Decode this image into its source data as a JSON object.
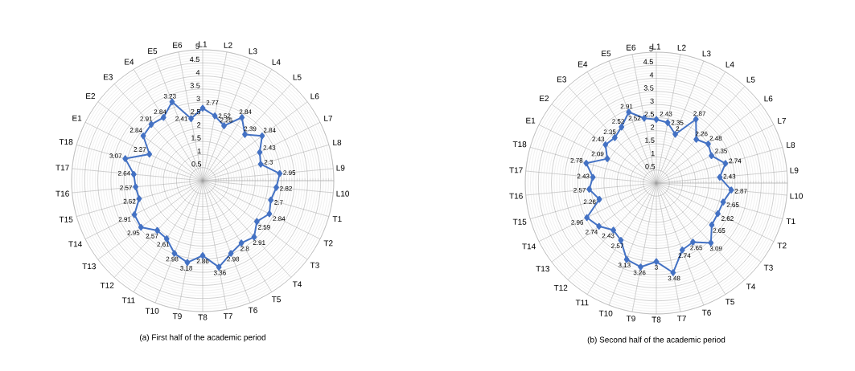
{
  "chart_data": [
    {
      "type": "radar",
      "title": "(a) First half of the academic period",
      "categories": [
        "L1",
        "L2",
        "L3",
        "L4",
        "L5",
        "L6",
        "L7",
        "L8",
        "L9",
        "L10",
        "T1",
        "T2",
        "T3",
        "T4",
        "T5",
        "T6",
        "T7",
        "T8",
        "T9",
        "T10",
        "T11",
        "T12",
        "T13",
        "T14",
        "T15",
        "T16",
        "T17",
        "T18",
        "E1",
        "E2",
        "E3",
        "E4",
        "E5",
        "E6"
      ],
      "series": [
        {
          "color": "#4472c4",
          "values": [
            2.77,
            2.52,
            2.25,
            2.84,
            2.39,
            2.84,
            2.43,
            2.3,
            2.95,
            2.82,
            2.7,
            2.84,
            2.59,
            2.91,
            2.8,
            2.98,
            3.36,
            2.86,
            3.18,
            2.98,
            2.61,
            2.57,
            2.95,
            2.91,
            2.52,
            2.57,
            2.64,
            3.07,
            2.27,
            2.84,
            2.91,
            2.84,
            3.23,
            2.41
          ]
        }
      ],
      "ylim": [
        0,
        5
      ],
      "yticks": [
        0.5,
        1,
        1.5,
        2,
        2.5,
        3,
        3.5,
        4,
        4.5,
        5
      ],
      "grid": true,
      "marker": "diamond",
      "data_labels": true
    },
    {
      "type": "radar",
      "title": "(b) Second half of the academic period",
      "categories": [
        "L1",
        "L2",
        "L3",
        "L4",
        "L5",
        "L6",
        "L7",
        "L8",
        "L9",
        "L10",
        "T1",
        "T2",
        "T3",
        "T4",
        "T5",
        "T6",
        "T7",
        "T8",
        "T9",
        "T10",
        "T11",
        "T12",
        "T13",
        "T14",
        "T15",
        "T16",
        "T17",
        "T18",
        "E1",
        "E2",
        "E3",
        "E4",
        "E5",
        "E6"
      ],
      "series": [
        {
          "color": "#4472c4",
          "values": [
            2.43,
            2.35,
            2,
            2.87,
            2.26,
            2.48,
            2.35,
            2.74,
            2.43,
            2.87,
            2.65,
            2.62,
            2.65,
            3.09,
            2.65,
            2.74,
            3.48,
            3,
            3.26,
            3.13,
            2.57,
            2.43,
            2.74,
            2.96,
            2.26,
            2.57,
            2.43,
            2.78,
            2.09,
            2.43,
            2.35,
            2.52,
            2.91,
            2.52
          ]
        }
      ],
      "ylim": [
        0,
        5
      ],
      "yticks": [
        0.5,
        1,
        1.5,
        2,
        2.5,
        3,
        3.5,
        4,
        4.5,
        5
      ],
      "grid": true,
      "marker": "diamond",
      "data_labels": true
    }
  ]
}
